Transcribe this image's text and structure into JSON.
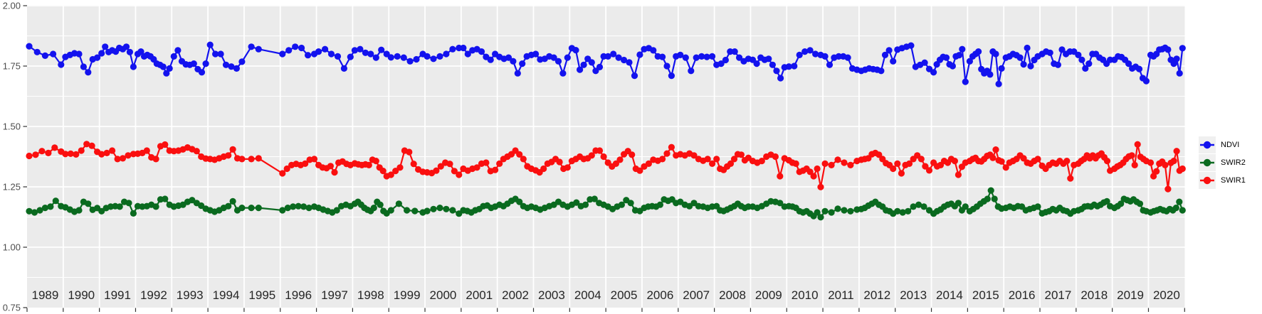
{
  "chart_data": {
    "type": "line",
    "title": "",
    "subtitle": "",
    "xlabel": "",
    "ylabel": "",
    "ylim": [
      0.75,
      2.0
    ],
    "xlim": [
      1989,
      2021
    ],
    "y_ticks": [
      "2.00",
      "1.75",
      "1.50",
      "1.25",
      "1.00",
      "0.75"
    ],
    "y_tick_values": [
      2.0,
      1.75,
      1.5,
      1.25,
      1.0,
      0.75
    ],
    "y_minor_values": [
      1.875,
      1.625,
      1.375,
      1.125,
      0.875
    ],
    "x_ticks": [
      "1989",
      "1990",
      "1991",
      "1992",
      "1993",
      "1994",
      "1995",
      "1996",
      "1997",
      "1998",
      "1999",
      "2000",
      "2001",
      "2002",
      "2003",
      "2004",
      "2005",
      "2006",
      "2007",
      "2008",
      "2009",
      "2010",
      "2011",
      "2012",
      "2013",
      "2014",
      "2015",
      "2016",
      "2017",
      "2018",
      "2019",
      "2020"
    ],
    "grid": "white major and minor horizontal lines, white major vertical lines at year boundaries, on grey panel",
    "legend_position": "right",
    "colors": {
      "panel_bg": "#ebebeb",
      "grid": "#ffffff",
      "tick": "#333333",
      "y_axis_text": "#4d4d4d",
      "x_axis_text": "#262626",
      "legend_key_bg": "#f0f0f0",
      "ndvi": "#1312ee",
      "swir2": "#0a6a1f",
      "swir1": "#fa0f0f"
    },
    "series": [
      {
        "name": "NDVI",
        "color": "#1312ee",
        "values_by_year": {
          "1989": [
            1.832,
            1.808,
            1.793,
            1.8,
            1.756
          ],
          "1990": [
            1.788,
            1.796,
            1.803,
            1.8,
            1.747,
            1.724,
            1.778,
            1.785
          ],
          "1991": [
            1.803,
            1.83,
            1.808,
            1.815,
            1.81,
            1.825,
            1.82,
            1.83,
            1.808,
            1.747
          ],
          "1992": [
            1.8,
            1.81,
            1.79,
            1.796,
            1.79,
            1.778,
            1.76,
            1.755,
            1.747,
            1.72,
            1.74
          ],
          "1993": [
            1.79,
            1.815,
            1.77,
            1.757,
            1.755,
            1.76,
            1.737,
            1.724,
            1.76
          ],
          "1994": [
            1.838,
            1.8,
            1.8,
            1.755,
            1.748,
            1.74,
            1.768
          ],
          "1995": [
            1.83,
            1.82
          ],
          "1996": [
            1.8,
            1.815,
            1.83,
            1.825,
            1.795,
            1.8
          ],
          "1997": [
            1.81,
            1.82,
            1.8,
            1.79,
            1.74,
            1.788
          ],
          "1998": [
            1.815,
            1.82,
            1.805,
            1.8,
            1.785,
            1.817,
            1.8
          ],
          "1999": [
            1.786,
            1.79,
            1.785,
            1.77,
            1.778,
            1.8
          ],
          "2000": [
            1.79,
            1.78,
            1.79,
            1.8,
            1.82,
            1.825
          ],
          "2001": [
            1.825,
            1.8,
            1.815,
            1.82,
            1.81,
            1.788,
            1.776,
            1.8
          ],
          "2002": [
            1.788,
            1.78,
            1.785,
            1.77,
            1.72,
            1.76,
            1.79,
            1.796
          ],
          "2003": [
            1.8,
            1.777,
            1.78,
            1.79,
            1.785,
            1.77,
            1.72,
            1.785
          ],
          "2004": [
            1.824,
            1.816,
            1.735,
            1.755,
            1.78,
            1.765,
            1.73,
            1.746,
            1.79
          ],
          "2005": [
            1.79,
            1.8,
            1.785,
            1.775,
            1.765,
            1.71,
            1.797
          ],
          "2006": [
            1.82,
            1.824,
            1.815,
            1.79,
            1.788,
            1.75,
            1.71,
            1.79
          ],
          "2007": [
            1.796,
            1.785,
            1.73,
            1.785,
            1.79,
            1.788,
            1.79
          ],
          "2008": [
            1.755,
            1.76,
            1.775,
            1.81,
            1.81,
            1.785,
            1.77,
            1.78
          ],
          "2009": [
            1.776,
            1.76,
            1.785,
            1.776,
            1.78,
            1.755,
            1.73,
            1.7,
            1.745
          ],
          "2010": [
            1.748,
            1.75,
            1.796,
            1.81,
            1.815,
            1.8,
            1.796
          ],
          "2011": [
            1.79,
            1.755,
            1.785,
            1.79,
            1.79,
            1.785,
            1.74,
            1.735
          ],
          "2012": [
            1.73,
            1.735,
            1.74,
            1.737,
            1.735,
            1.73,
            1.796,
            1.815,
            1.77
          ],
          "2013": [
            1.818,
            1.824,
            1.83,
            1.835,
            1.747,
            1.755,
            1.764,
            1.738
          ],
          "2014": [
            1.724,
            1.757,
            1.776,
            1.788,
            1.785,
            1.757,
            1.75,
            1.79,
            1.795,
            1.82,
            1.685
          ],
          "2015": [
            1.77,
            1.79,
            1.8,
            1.81,
            1.737,
            1.72,
            1.73,
            1.715,
            1.81,
            1.8,
            1.676,
            1.74
          ],
          "2016": [
            1.785,
            1.79,
            1.8,
            1.795,
            1.785,
            1.757,
            1.825,
            1.75,
            1.775,
            1.79
          ],
          "2017": [
            1.8,
            1.81,
            1.805,
            1.76,
            1.755,
            1.818,
            1.8,
            1.81,
            1.81
          ],
          "2018": [
            1.796,
            1.776,
            1.74,
            1.76,
            1.8,
            1.8,
            1.785,
            1.776,
            1.76,
            1.776
          ],
          "2019": [
            1.776,
            1.79,
            1.787,
            1.776,
            1.76,
            1.74,
            1.747,
            1.738,
            1.7,
            1.688
          ],
          "2020": [
            1.796,
            1.79,
            1.8,
            1.818,
            1.82,
            1.826,
            1.818,
            1.776,
            1.76,
            1.78,
            1.72,
            1.824
          ]
        }
      },
      {
        "name": "SWIR2",
        "color": "#0a6a1f",
        "values_by_year": {
          "1989": [
            1.149,
            1.144,
            1.153,
            1.163,
            1.168,
            1.192,
            1.17
          ],
          "1990": [
            1.165,
            1.156,
            1.147,
            1.153,
            1.188,
            1.18,
            1.155,
            1.162
          ],
          "1991": [
            1.149,
            1.162,
            1.168,
            1.17,
            1.168,
            1.188,
            1.183,
            1.14
          ],
          "1992": [
            1.17,
            1.168,
            1.17,
            1.176,
            1.168,
            1.198,
            1.2,
            1.176
          ],
          "1993": [
            1.168,
            1.172,
            1.176,
            1.188,
            1.195,
            1.183,
            1.172,
            1.159
          ],
          "1994": [
            1.153,
            1.147,
            1.153,
            1.163,
            1.17,
            1.19,
            1.153,
            1.163
          ],
          "1995": [
            1.163,
            1.163
          ],
          "1996": [
            1.153,
            1.163,
            1.168,
            1.17,
            1.168,
            1.163,
            1.168
          ],
          "1997": [
            1.163,
            1.156,
            1.15,
            1.144,
            1.153,
            1.17,
            1.176,
            1.17
          ],
          "1998": [
            1.18,
            1.188,
            1.176,
            1.163,
            1.155,
            1.15,
            1.163,
            1.188,
            1.176,
            1.15,
            1.14
          ],
          "1999": [
            1.153,
            1.18,
            1.153,
            1.15,
            1.144
          ],
          "2000": [
            1.15,
            1.158,
            1.163,
            1.158,
            1.153,
            1.139
          ],
          "2001": [
            1.153,
            1.15,
            1.144,
            1.153,
            1.158,
            1.17,
            1.173,
            1.163,
            1.168
          ],
          "2002": [
            1.176,
            1.17,
            1.18,
            1.192,
            1.2,
            1.188,
            1.17,
            1.163,
            1.168
          ],
          "2003": [
            1.163,
            1.156,
            1.163,
            1.17,
            1.176,
            1.188,
            1.176,
            1.168
          ],
          "2004": [
            1.176,
            1.185,
            1.17,
            1.176,
            1.198,
            1.2,
            1.183,
            1.176
          ],
          "2005": [
            1.168,
            1.158,
            1.168,
            1.176,
            1.195,
            1.183,
            1.153,
            1.15
          ],
          "2006": [
            1.163,
            1.168,
            1.17,
            1.168,
            1.176,
            1.198,
            1.192,
            1.198,
            1.183
          ],
          "2007": [
            1.188,
            1.176,
            1.17,
            1.183,
            1.17,
            1.168,
            1.163,
            1.168
          ],
          "2008": [
            1.17,
            1.153,
            1.15,
            1.156,
            1.163,
            1.17,
            1.18,
            1.17,
            1.163,
            1.168
          ],
          "2009": [
            1.168,
            1.163,
            1.17,
            1.18,
            1.19,
            1.188,
            1.183,
            1.168
          ],
          "2010": [
            1.17,
            1.168,
            1.163,
            1.149,
            1.144,
            1.149,
            1.139,
            1.129,
            1.144,
            1.124
          ],
          "2011": [
            1.149,
            1.144,
            1.159,
            1.153,
            1.149,
            1.156
          ],
          "2012": [
            1.158,
            1.163,
            1.172,
            1.18,
            1.188,
            1.176,
            1.168,
            1.153,
            1.149,
            1.139
          ],
          "2013": [
            1.149,
            1.144,
            1.149,
            1.168,
            1.176,
            1.168,
            1.153
          ],
          "2014": [
            1.139,
            1.149,
            1.156,
            1.168,
            1.176,
            1.18,
            1.17,
            1.183,
            1.153,
            1.168
          ],
          "2015": [
            1.149,
            1.158,
            1.168,
            1.18,
            1.19,
            1.2,
            1.235,
            1.2,
            1.168,
            1.16
          ],
          "2016": [
            1.163,
            1.168,
            1.163,
            1.17,
            1.168,
            1.153,
            1.158,
            1.163,
            1.168
          ],
          "2017": [
            1.14,
            1.145,
            1.149,
            1.158,
            1.153,
            1.163,
            1.153,
            1.149,
            1.139,
            1.149
          ],
          "2018": [
            1.153,
            1.158,
            1.168,
            1.17,
            1.168,
            1.176,
            1.17,
            1.176,
            1.185,
            1.19,
            1.17
          ],
          "2019": [
            1.163,
            1.17,
            1.18,
            1.2,
            1.195,
            1.19,
            1.198,
            1.188,
            1.18,
            1.153,
            1.149
          ],
          "2020": [
            1.144,
            1.149,
            1.153,
            1.158,
            1.153,
            1.149,
            1.158,
            1.153,
            1.163,
            1.188,
            1.153
          ]
        }
      },
      {
        "name": "SWIR1",
        "color": "#fa0f0f",
        "values_by_year": {
          "1989": [
            1.378,
            1.383,
            1.398,
            1.39,
            1.412,
            1.396
          ],
          "1990": [
            1.386,
            1.387,
            1.384,
            1.4,
            1.427,
            1.42,
            1.395
          ],
          "1991": [
            1.385,
            1.39,
            1.4,
            1.365,
            1.368,
            1.38,
            1.386
          ],
          "1992": [
            1.387,
            1.39,
            1.4,
            1.372,
            1.365,
            1.418,
            1.425,
            1.4
          ],
          "1993": [
            1.398,
            1.4,
            1.405,
            1.413,
            1.406,
            1.398,
            1.375,
            1.367
          ],
          "1994": [
            1.365,
            1.362,
            1.368,
            1.375,
            1.38,
            1.405,
            1.368,
            1.365
          ],
          "1995": [
            1.365,
            1.368
          ],
          "1996": [
            1.306,
            1.325,
            1.34,
            1.345,
            1.34,
            1.346,
            1.362,
            1.365
          ],
          "1997": [
            1.34,
            1.33,
            1.327,
            1.336,
            1.31,
            1.35,
            1.355,
            1.345,
            1.34
          ],
          "1998": [
            1.347,
            1.343,
            1.34,
            1.343,
            1.34,
            1.362,
            1.357,
            1.33,
            1.316,
            1.294
          ],
          "1999": [
            1.3,
            1.316,
            1.33,
            1.4,
            1.394,
            1.345,
            1.322,
            1.312
          ],
          "2000": [
            1.31,
            1.307,
            1.317,
            1.335,
            1.35,
            1.345,
            1.315,
            1.3
          ],
          "2001": [
            1.325,
            1.317,
            1.325,
            1.33,
            1.346,
            1.35,
            1.315,
            1.32
          ],
          "2002": [
            1.346,
            1.365,
            1.375,
            1.385,
            1.4,
            1.384,
            1.365,
            1.335,
            1.325
          ],
          "2003": [
            1.318,
            1.31,
            1.325,
            1.346,
            1.353,
            1.365,
            1.353,
            1.325,
            1.33
          ],
          "2004": [
            1.357,
            1.365,
            1.375,
            1.365,
            1.368,
            1.38,
            1.4,
            1.4,
            1.375
          ],
          "2005": [
            1.35,
            1.334,
            1.346,
            1.362,
            1.385,
            1.398,
            1.383,
            1.325,
            1.317
          ],
          "2006": [
            1.334,
            1.346,
            1.362,
            1.358,
            1.365,
            1.388,
            1.414,
            1.38
          ],
          "2007": [
            1.385,
            1.38,
            1.388,
            1.38,
            1.365,
            1.358,
            1.365,
            1.346
          ],
          "2008": [
            1.365,
            1.325,
            1.32,
            1.334,
            1.346,
            1.365,
            1.385,
            1.383,
            1.36,
            1.37
          ],
          "2009": [
            1.357,
            1.35,
            1.357,
            1.375,
            1.383,
            1.375,
            1.294,
            1.368
          ],
          "2010": [
            1.36,
            1.35,
            1.346,
            1.312,
            1.317,
            1.325,
            1.312,
            1.294,
            1.325,
            1.249
          ],
          "2011": [
            1.346,
            1.34,
            1.362,
            1.35,
            1.34,
            1.357
          ],
          "2012": [
            1.362,
            1.365,
            1.368,
            1.385,
            1.39,
            1.383,
            1.365,
            1.348,
            1.34,
            1.325
          ],
          "2013": [
            1.346,
            1.306,
            1.34,
            1.346,
            1.365,
            1.38,
            1.365,
            1.335,
            1.318
          ],
          "2014": [
            1.35,
            1.335,
            1.34,
            1.357,
            1.35,
            1.365,
            1.357,
            1.3,
            1.333,
            1.35
          ],
          "2015": [
            1.357,
            1.365,
            1.37,
            1.357,
            1.355,
            1.365,
            1.378,
            1.383,
            1.37,
            1.404,
            1.36,
            1.355
          ],
          "2016": [
            1.33,
            1.35,
            1.357,
            1.365,
            1.38,
            1.368,
            1.35,
            1.346,
            1.357,
            1.365
          ],
          "2017": [
            1.337,
            1.325,
            1.34,
            1.35,
            1.346,
            1.357,
            1.346,
            1.357,
            1.285,
            1.34
          ],
          "2018": [
            1.346,
            1.357,
            1.365,
            1.38,
            1.368,
            1.38,
            1.368,
            1.38,
            1.388,
            1.372,
            1.357,
            1.317
          ],
          "2019": [
            1.325,
            1.334,
            1.34,
            1.35,
            1.365,
            1.376,
            1.38,
            1.34,
            1.426,
            1.374,
            1.365,
            1.357
          ],
          "2020": [
            1.35,
            1.294,
            1.314,
            1.346,
            1.354,
            1.34,
            1.241,
            1.349,
            1.357,
            1.398,
            1.317,
            1.325
          ]
        }
      }
    ]
  }
}
